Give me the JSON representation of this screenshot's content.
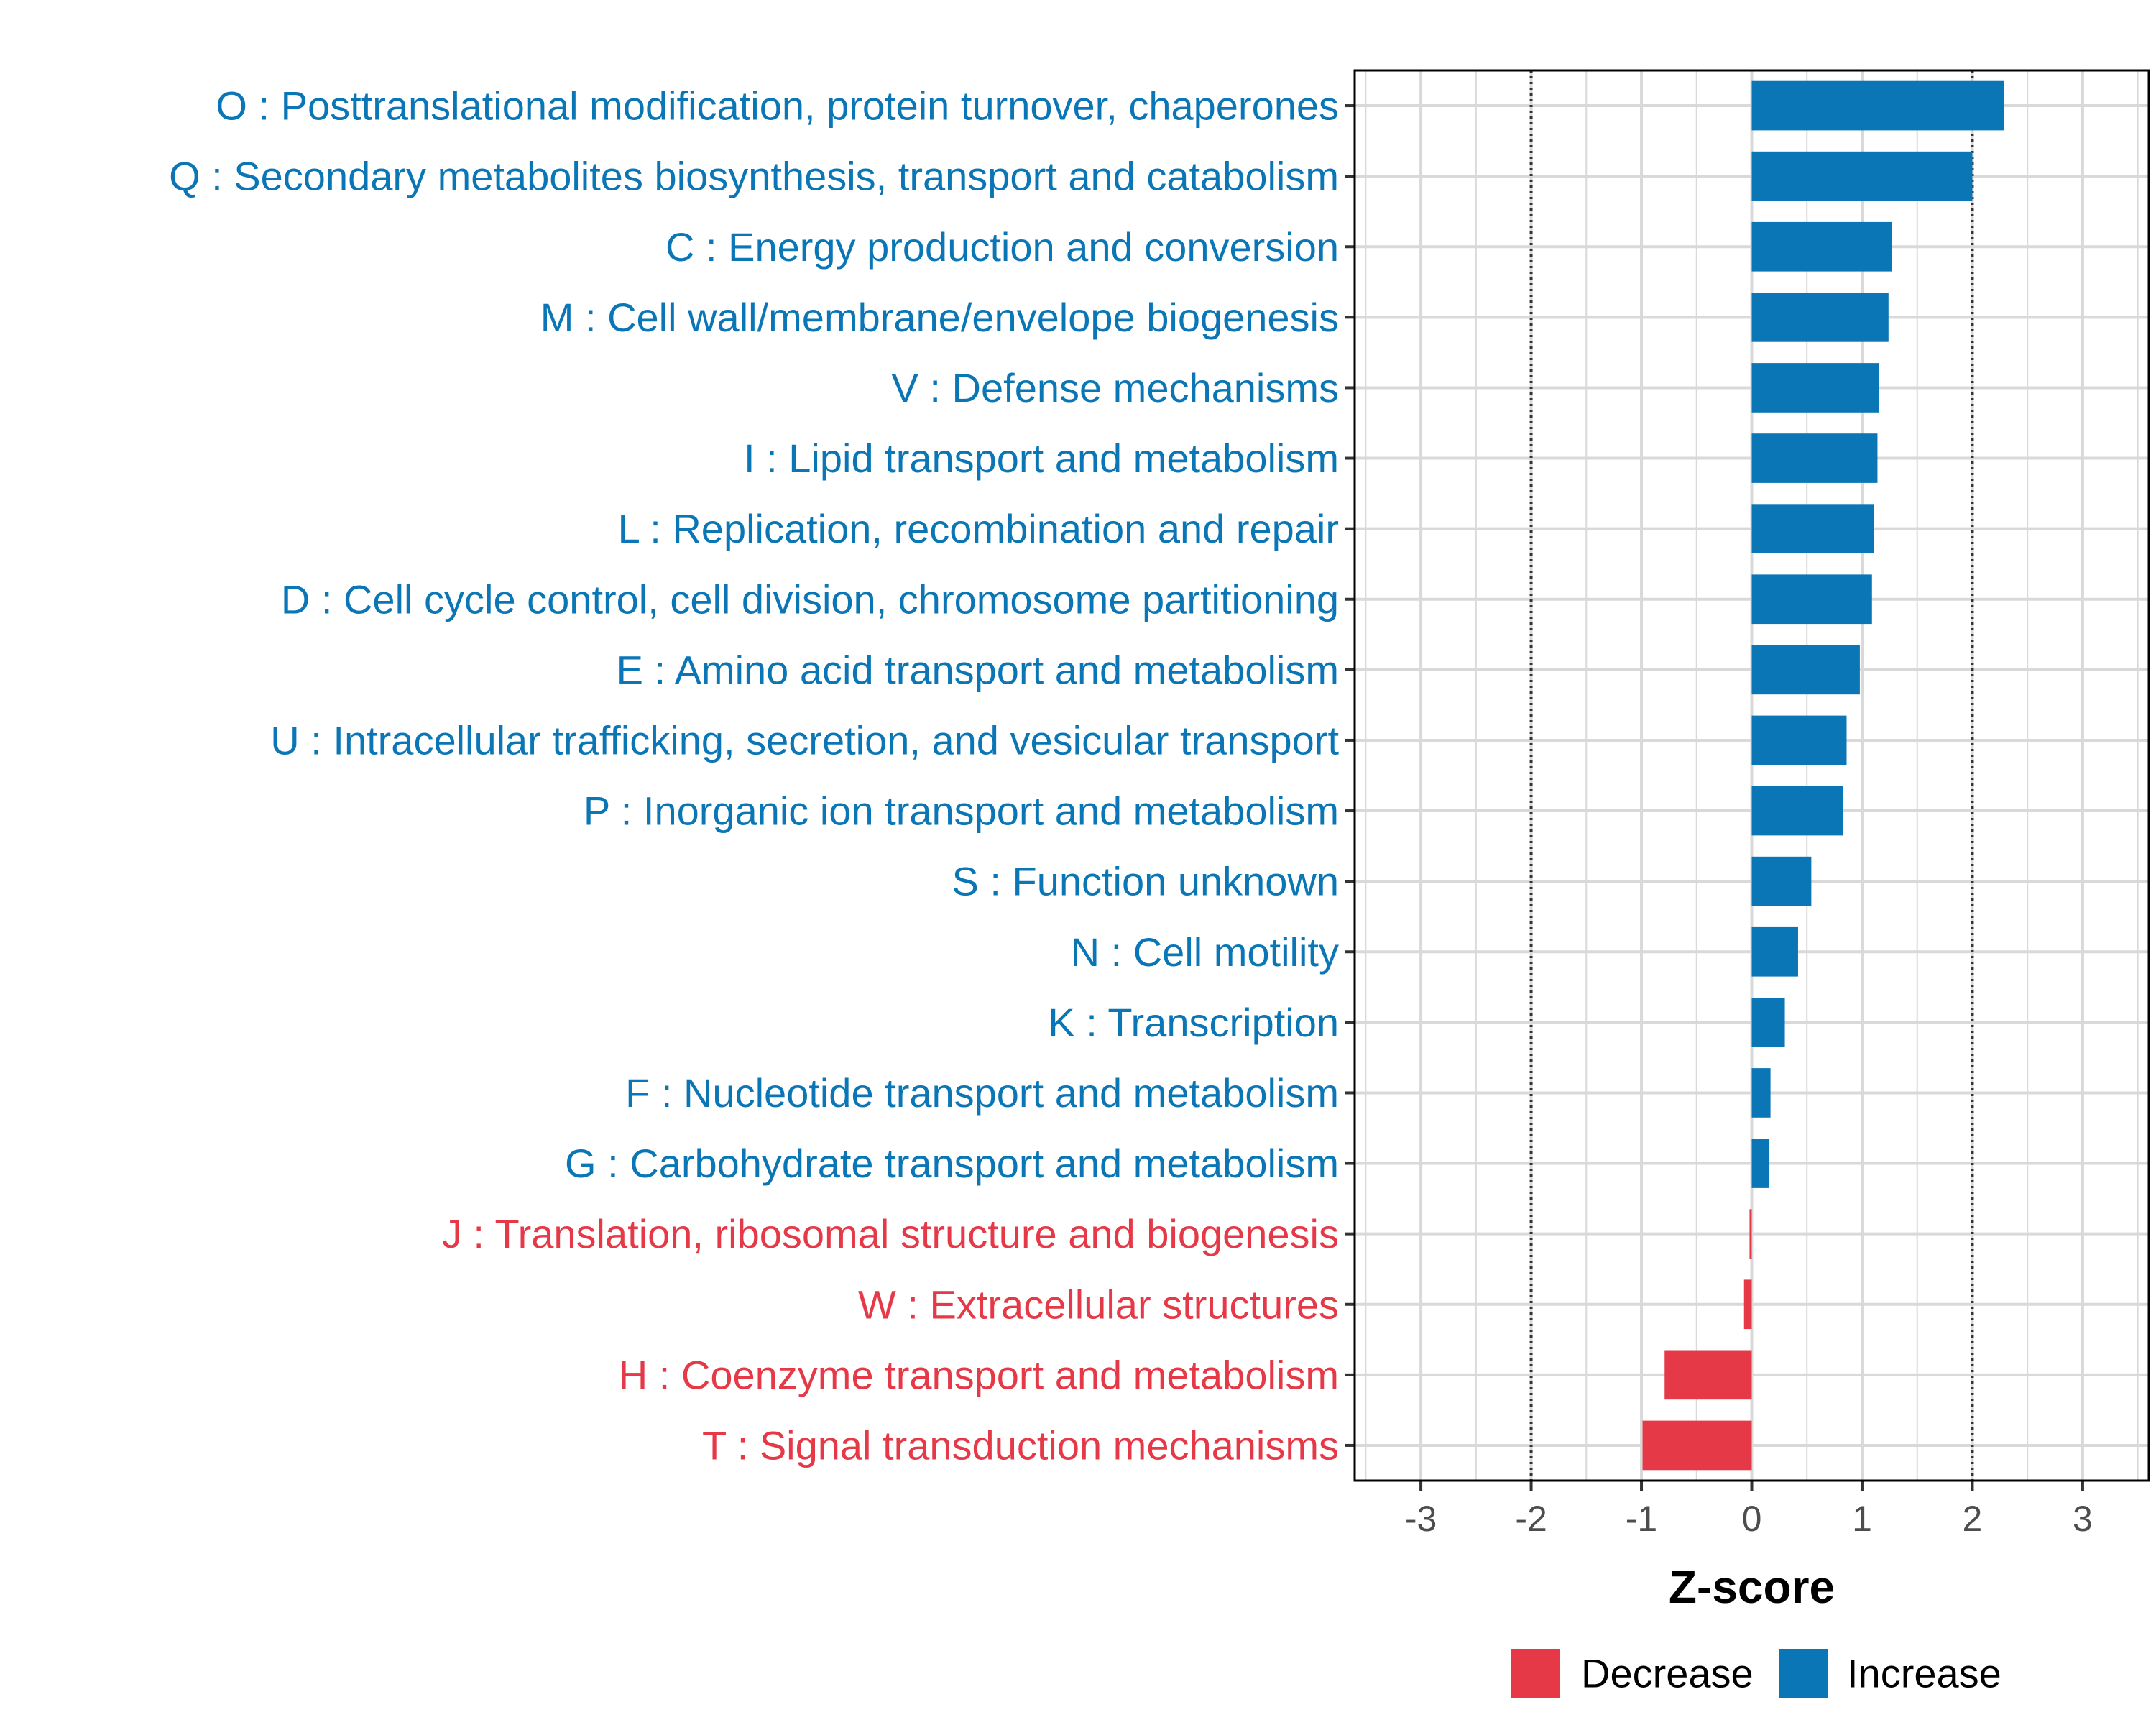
{
  "colors": {
    "increase": "#0A76B5",
    "decrease": "#E53948",
    "grid": "#D9D9D9",
    "frame": "#000000",
    "threshold": "#333333"
  },
  "chart_data": {
    "type": "bar",
    "orientation": "horizontal",
    "xlabel": "Z-score",
    "ylabel": "",
    "xlim": [
      -3.6,
      3.6
    ],
    "x_ticks": [
      -3,
      -2,
      -1,
      0,
      1,
      2,
      3
    ],
    "x_tick_labels": [
      "-3",
      "-2",
      "-1",
      "0",
      "1",
      "2",
      "3"
    ],
    "threshold_lines": [
      -2,
      2
    ],
    "grid": true,
    "legend_position": "bottom",
    "legend": [
      {
        "name": "Decrease",
        "color_key": "decrease"
      },
      {
        "name": "Increase",
        "color_key": "increase"
      }
    ],
    "categories": [
      "O : Posttranslational modification, protein turnover, chaperones",
      "Q : Secondary metabolites biosynthesis, transport and catabolism",
      "C : Energy production and conversion",
      "M : Cell wall/membrane/envelope biogenesis",
      "V : Defense mechanisms",
      "I : Lipid transport and metabolism",
      "L : Replication, recombination and repair",
      "D : Cell cycle control, cell division, chromosome partitioning",
      "E : Amino acid transport and metabolism",
      "U : Intracellular trafficking, secretion, and vesicular transport",
      "P : Inorganic ion transport and metabolism",
      "S : Function unknown",
      "N : Cell motility",
      "K : Transcription",
      "F : Nucleotide transport and metabolism",
      "G : Carbohydrate transport and metabolism",
      "J : Translation, ribosomal structure and biogenesis",
      "W : Extracellular structures",
      "H : Coenzyme transport and metabolism",
      "T : Signal transduction mechanisms"
    ],
    "values": [
      2.29,
      2.0,
      1.27,
      1.24,
      1.15,
      1.14,
      1.11,
      1.09,
      0.98,
      0.86,
      0.83,
      0.54,
      0.42,
      0.3,
      0.17,
      0.16,
      -0.02,
      -0.07,
      -0.79,
      -0.99
    ],
    "groups": [
      "Increase",
      "Increase",
      "Increase",
      "Increase",
      "Increase",
      "Increase",
      "Increase",
      "Increase",
      "Increase",
      "Increase",
      "Increase",
      "Increase",
      "Increase",
      "Increase",
      "Increase",
      "Increase",
      "Decrease",
      "Decrease",
      "Decrease",
      "Decrease"
    ]
  }
}
